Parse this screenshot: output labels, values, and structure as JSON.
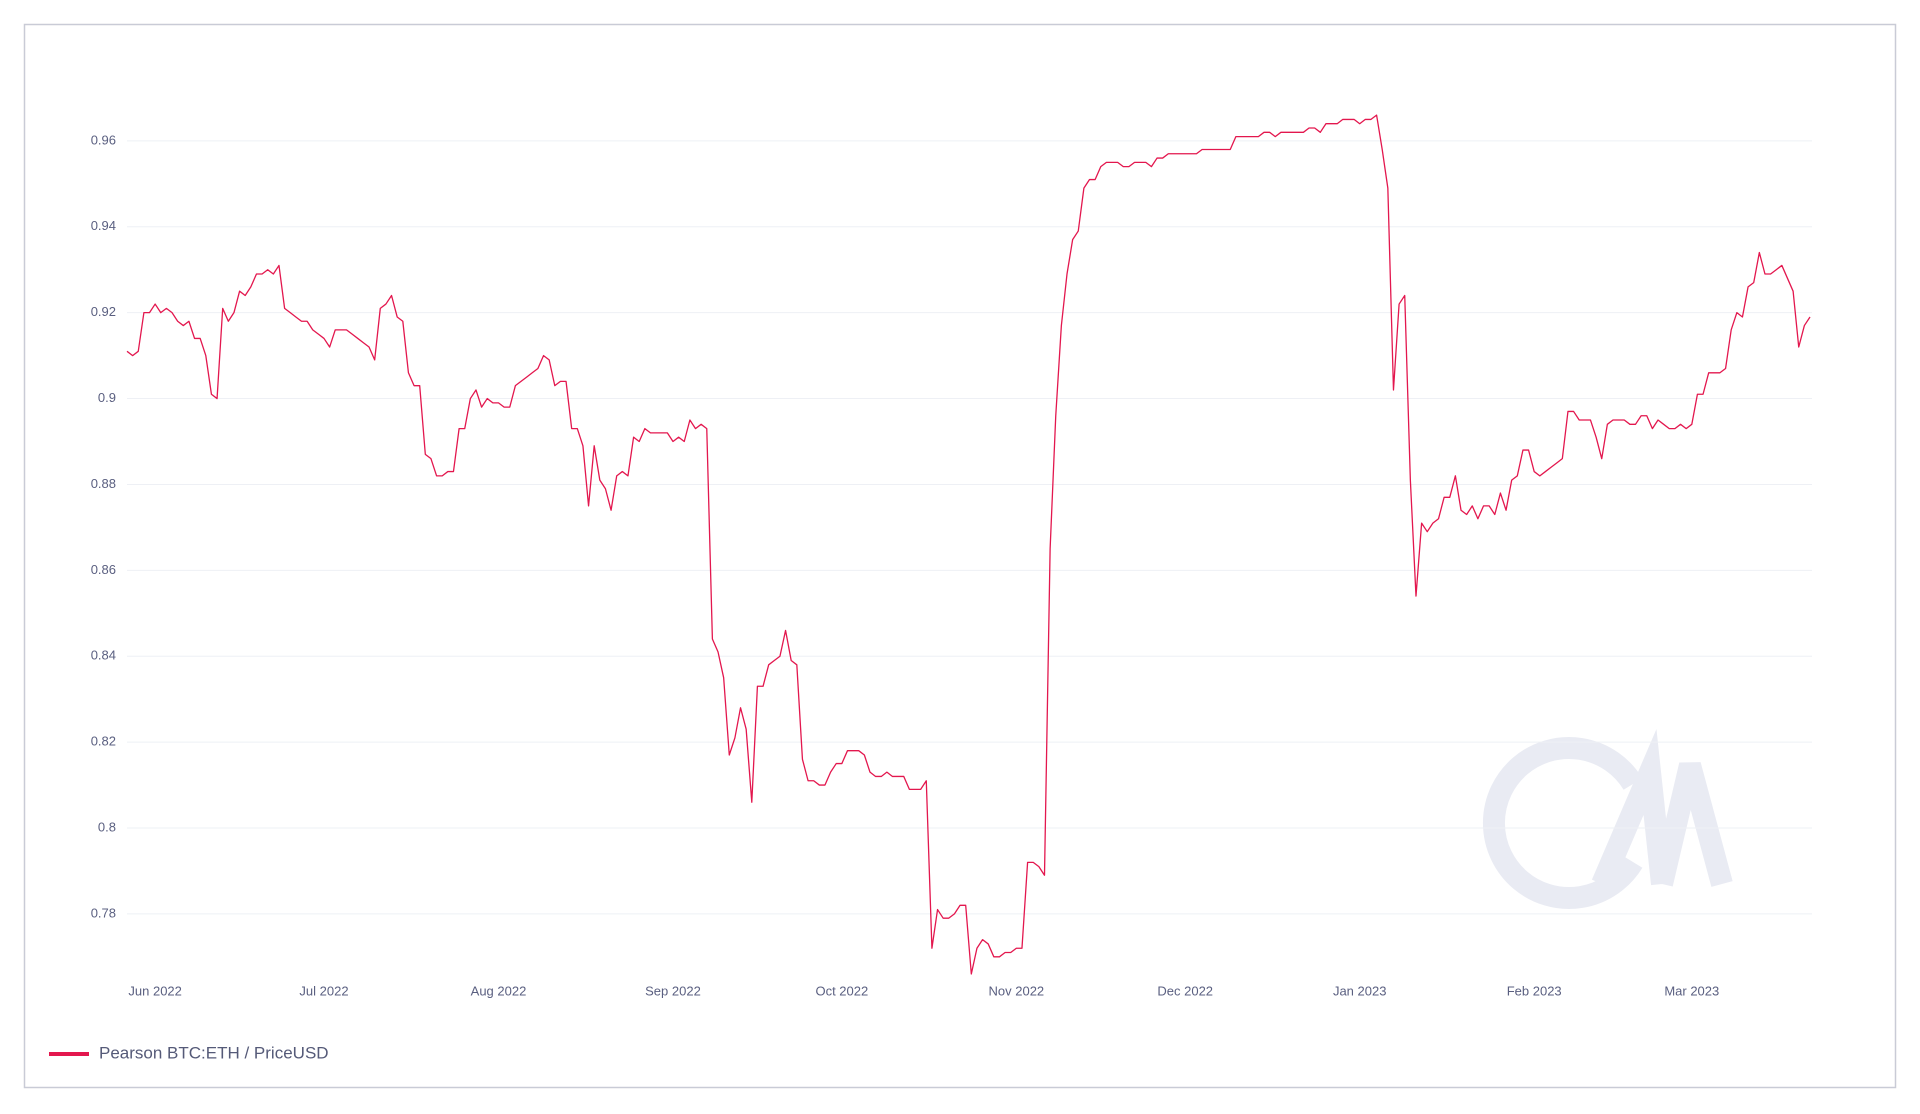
{
  "chart_data": {
    "type": "line",
    "x": [
      -5,
      -4,
      -3,
      -2,
      -1,
      0,
      1,
      2,
      3,
      4,
      5,
      6,
      7,
      8,
      9,
      10,
      11,
      12,
      13,
      14,
      15,
      16,
      17,
      18,
      19,
      20,
      21,
      22,
      23,
      24,
      25,
      26,
      27,
      28,
      29,
      30,
      31,
      32,
      33,
      34,
      35,
      36,
      37,
      38,
      39,
      40,
      41,
      42,
      43,
      44,
      45,
      46,
      47,
      48,
      49,
      50,
      51,
      52,
      53,
      54,
      55,
      56,
      57,
      58,
      59,
      60,
      61,
      62,
      63,
      64,
      65,
      66,
      67,
      68,
      69,
      70,
      71,
      72,
      73,
      74,
      75,
      76,
      77,
      78,
      79,
      80,
      81,
      82,
      83,
      84,
      85,
      86,
      87,
      88,
      89,
      90,
      91,
      92,
      93,
      94,
      95,
      96,
      97,
      98,
      99,
      100,
      101,
      102,
      103,
      104,
      105,
      106,
      107,
      108,
      109,
      110,
      111,
      112,
      113,
      114,
      115,
      116,
      117,
      118,
      119,
      120,
      121,
      122,
      123,
      124,
      125,
      126,
      127,
      128,
      129,
      130,
      131,
      132,
      133,
      134,
      135,
      136,
      137,
      138,
      139,
      140,
      141,
      142,
      143,
      144,
      145,
      146,
      147,
      148,
      149,
      150,
      151,
      152,
      153,
      154,
      155,
      156,
      157,
      158,
      159,
      160,
      161,
      162,
      163,
      164,
      165,
      166,
      167,
      168,
      169,
      170,
      171,
      172,
      173,
      174,
      175,
      176,
      177,
      178,
      179,
      180,
      181,
      182,
      183,
      184,
      185,
      186,
      187,
      188,
      189,
      190,
      191,
      192,
      193,
      194,
      195,
      196,
      197,
      198,
      199,
      200,
      201,
      202,
      203,
      204,
      205,
      206,
      207,
      208,
      209,
      210,
      211,
      212,
      213,
      214,
      215,
      216,
      217,
      218,
      219,
      220,
      221,
      222,
      223,
      224,
      225,
      226,
      227,
      228,
      229,
      230,
      231,
      232,
      233,
      234,
      235,
      236,
      237,
      238,
      239,
      240,
      241,
      242,
      243,
      244,
      245,
      246,
      247,
      248,
      249,
      250,
      251,
      252,
      253,
      254,
      255,
      256,
      257,
      258,
      259,
      260,
      261,
      262,
      263,
      264,
      265,
      266,
      267,
      268,
      269,
      270,
      271,
      272,
      273,
      274,
      275,
      276,
      277,
      278,
      279,
      280,
      281,
      282,
      283,
      284,
      285,
      286,
      287,
      288,
      289,
      290,
      291,
      292,
      293,
      294
    ],
    "series": [
      {
        "name": "Pearson BTC:ETH / PriceUSD",
        "color": "#e3174e",
        "values": [
          0.911,
          0.91,
          0.911,
          0.92,
          0.92,
          0.922,
          0.92,
          0.921,
          0.92,
          0.918,
          0.917,
          0.918,
          0.914,
          0.914,
          0.91,
          0.901,
          0.9,
          0.921,
          0.918,
          0.92,
          0.925,
          0.924,
          0.926,
          0.929,
          0.929,
          0.93,
          0.929,
          0.931,
          0.921,
          0.92,
          0.919,
          0.918,
          0.918,
          0.916,
          0.915,
          0.914,
          0.912,
          0.916,
          0.916,
          0.916,
          0.915,
          0.914,
          0.913,
          0.912,
          0.909,
          0.921,
          0.922,
          0.924,
          0.919,
          0.918,
          0.906,
          0.903,
          0.903,
          0.887,
          0.886,
          0.882,
          0.882,
          0.883,
          0.883,
          0.893,
          0.893,
          0.9,
          0.902,
          0.898,
          0.9,
          0.899,
          0.899,
          0.898,
          0.898,
          0.903,
          0.904,
          0.905,
          0.906,
          0.907,
          0.91,
          0.909,
          0.903,
          0.904,
          0.904,
          0.893,
          0.893,
          0.889,
          0.875,
          0.889,
          0.881,
          0.879,
          0.874,
          0.882,
          0.883,
          0.882,
          0.891,
          0.89,
          0.893,
          0.892,
          0.892,
          0.892,
          0.892,
          0.89,
          0.891,
          0.89,
          0.895,
          0.893,
          0.894,
          0.893,
          0.844,
          0.841,
          0.835,
          0.817,
          0.821,
          0.828,
          0.823,
          0.806,
          0.833,
          0.833,
          0.838,
          0.839,
          0.84,
          0.846,
          0.839,
          0.838,
          0.816,
          0.811,
          0.811,
          0.81,
          0.81,
          0.813,
          0.815,
          0.815,
          0.818,
          0.818,
          0.818,
          0.817,
          0.813,
          0.812,
          0.812,
          0.813,
          0.812,
          0.812,
          0.812,
          0.809,
          0.809,
          0.809,
          0.811,
          0.772,
          0.781,
          0.779,
          0.779,
          0.78,
          0.782,
          0.782,
          0.766,
          0.772,
          0.774,
          0.773,
          0.77,
          0.77,
          0.771,
          0.771,
          0.772,
          0.772,
          0.792,
          0.792,
          0.791,
          0.789,
          0.865,
          0.896,
          0.917,
          0.929,
          0.937,
          0.939,
          0.949,
          0.951,
          0.951,
          0.954,
          0.955,
          0.955,
          0.955,
          0.954,
          0.954,
          0.955,
          0.955,
          0.955,
          0.954,
          0.956,
          0.956,
          0.957,
          0.957,
          0.957,
          0.957,
          0.957,
          0.957,
          0.958,
          0.958,
          0.958,
          0.958,
          0.958,
          0.958,
          0.961,
          0.961,
          0.961,
          0.961,
          0.961,
          0.962,
          0.962,
          0.961,
          0.962,
          0.962,
          0.962,
          0.962,
          0.962,
          0.963,
          0.963,
          0.962,
          0.964,
          0.964,
          0.964,
          0.965,
          0.965,
          0.965,
          0.964,
          0.965,
          0.965,
          0.966,
          0.958,
          0.949,
          0.902,
          0.922,
          0.924,
          0.881,
          0.854,
          0.871,
          0.869,
          0.871,
          0.872,
          0.877,
          0.877,
          0.882,
          0.874,
          0.873,
          0.875,
          0.872,
          0.875,
          0.875,
          0.873,
          0.878,
          0.874,
          0.881,
          0.882,
          0.888,
          0.888,
          0.883,
          0.882,
          0.883,
          0.884,
          0.885,
          0.886,
          0.897,
          0.897,
          0.895,
          0.895,
          0.895,
          0.891,
          0.886,
          0.894,
          0.895,
          0.895,
          0.895,
          0.894,
          0.894,
          0.896,
          0.896,
          0.893,
          0.895,
          0.894,
          0.893,
          0.893,
          0.894,
          0.893,
          0.894,
          0.901,
          0.901,
          0.906,
          0.906,
          0.906,
          0.907,
          0.916,
          0.92,
          0.919,
          0.926,
          0.927,
          0.934,
          0.929,
          0.929,
          0.93,
          0.931,
          0.928,
          0.925,
          0.912,
          0.917,
          0.919
        ]
      }
    ],
    "xlim": [
      -5,
      294
    ],
    "xticks": [
      {
        "value": 0,
        "label": "Jun 2022"
      },
      {
        "value": 30,
        "label": "Jul 2022"
      },
      {
        "value": 61,
        "label": "Aug 2022"
      },
      {
        "value": 92,
        "label": "Sep 2022"
      },
      {
        "value": 122,
        "label": "Oct 2022"
      },
      {
        "value": 153,
        "label": "Nov 2022"
      },
      {
        "value": 183,
        "label": "Dec 2022"
      },
      {
        "value": 214,
        "label": "Jan 2023"
      },
      {
        "value": 245,
        "label": "Feb 2023"
      },
      {
        "value": 273,
        "label": "Mar 2023"
      }
    ],
    "ylim": [
      0.766,
      0.98
    ],
    "yticks": [
      0.78,
      0.8,
      0.82,
      0.84,
      0.86,
      0.88,
      0.9,
      0.92,
      0.94,
      0.96
    ],
    "grid": true,
    "legend": "bottom-left"
  }
}
